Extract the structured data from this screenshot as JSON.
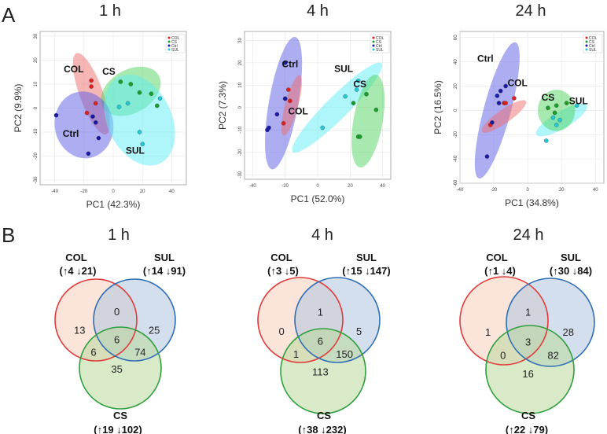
{
  "panel_a_letter": "A",
  "panel_b_letter": "B",
  "colors": {
    "COL": "#e0201e",
    "CS": "#1a9e2a",
    "Ctrl": "#1a1aa8",
    "SUL": "#24c9d6",
    "COL_fill": "#ef6e6e",
    "CS_fill": "#4fd45f",
    "Ctrl_fill": "#5b5be6",
    "SUL_fill": "#5eeef3",
    "venn_COL": "#e03a3a",
    "venn_SUL": "#2f6db5",
    "venn_CS": "#2e9e3e"
  },
  "chart_data": [
    {
      "type": "scatter",
      "title": "1 h",
      "xlabel": "PC1 (42.3%)",
      "ylabel": "PC2 (9.9%)",
      "xlim": [
        -50,
        50
      ],
      "ylim": [
        -32,
        32
      ],
      "xticks": [
        -40,
        -20,
        0,
        20,
        40
      ],
      "yticks": [
        -30,
        -20,
        -10,
        0,
        10,
        20,
        30
      ],
      "legend": [
        "COL",
        "CS",
        "Ctrl",
        "SUL"
      ],
      "legend_position": "top-right",
      "labels": [
        {
          "text": "COL",
          "group": "COL",
          "x": -27,
          "y": 15
        },
        {
          "text": "CS",
          "group": "CS",
          "x": -3,
          "y": 14
        },
        {
          "text": "Ctrl",
          "group": "Ctrl",
          "x": -29,
          "y": -12
        },
        {
          "text": "SUL",
          "group": "SUL",
          "x": 15,
          "y": -19
        }
      ],
      "series": [
        {
          "name": "COL",
          "points": [
            [
              -15,
              11.5
            ],
            [
              -15,
              9
            ],
            [
              -18,
              -2
            ],
            [
              -12,
              2
            ]
          ]
        },
        {
          "name": "CS",
          "points": [
            [
              5,
              11
            ],
            [
              12,
              10
            ],
            [
              18,
              6.5
            ],
            [
              26,
              6
            ],
            [
              30,
              1
            ]
          ]
        },
        {
          "name": "Ctrl",
          "points": [
            [
              -39,
              -3
            ],
            [
              -14,
              -3.5
            ],
            [
              -12,
              -6
            ],
            [
              -10,
              -12.5
            ],
            [
              -17,
              -19
            ]
          ]
        },
        {
          "name": "SUL",
          "points": [
            [
              32,
              4
            ],
            [
              10,
              2
            ],
            [
              4,
              0.5
            ],
            [
              18,
              -10
            ],
            [
              20,
              -15
            ]
          ]
        }
      ],
      "ellipses": [
        {
          "group": "COL",
          "cx": -15,
          "cy": 6,
          "rx": 8,
          "ry": 18,
          "angle": -20
        },
        {
          "group": "CS",
          "cx": 12,
          "cy": 7,
          "rx": 22,
          "ry": 9,
          "angle": -30
        },
        {
          "group": "Ctrl",
          "cx": -20,
          "cy": -7,
          "rx": 20,
          "ry": 14,
          "angle": -10
        },
        {
          "group": "SUL",
          "cx": 18,
          "cy": -5,
          "rx": 22,
          "ry": 20,
          "angle": -25
        }
      ]
    },
    {
      "type": "scatter",
      "title": "4 h",
      "xlabel": "PC1 (52.0%)",
      "ylabel": "PC2 (7.3%)",
      "xlim": [
        -45,
        45
      ],
      "ylim": [
        -32,
        34
      ],
      "xticks": [
        -40,
        -20,
        0,
        20,
        40
      ],
      "yticks": [
        -30,
        -20,
        -10,
        0,
        10,
        20,
        30
      ],
      "legend": [
        "COL",
        "CS",
        "Ctrl",
        "SUL"
      ],
      "legend_position": "top-right",
      "labels": [
        {
          "text": "Ctrl",
          "group": "Ctrl",
          "x": -17,
          "y": 18
        },
        {
          "text": "COL",
          "group": "COL",
          "x": -12,
          "y": -3
        },
        {
          "text": "SUL",
          "group": "SUL",
          "x": 16,
          "y": 16
        },
        {
          "text": "CS",
          "group": "CS",
          "x": 26,
          "y": 9
        }
      ],
      "series": [
        {
          "name": "COL",
          "points": [
            [
              -18,
              8
            ],
            [
              -20,
              4
            ],
            [
              -17,
              3
            ],
            [
              -21,
              -7
            ]
          ]
        },
        {
          "name": "CS",
          "points": [
            [
              30,
              6
            ],
            [
              22,
              2
            ],
            [
              36,
              -1
            ],
            [
              25,
              -13
            ],
            [
              26,
              -13
            ]
          ]
        },
        {
          "name": "Ctrl",
          "points": [
            [
              -20,
              20
            ],
            [
              -20,
              4
            ],
            [
              -25,
              -3
            ],
            [
              -30,
              -9
            ],
            [
              -31,
              -10
            ]
          ]
        },
        {
          "name": "SUL",
          "points": [
            [
              25,
              12
            ],
            [
              24,
              8
            ],
            [
              17,
              5
            ],
            [
              3,
              -9
            ]
          ]
        }
      ],
      "ellipses": [
        {
          "group": "Ctrl",
          "cx": -21,
          "cy": 2,
          "rx": 9,
          "ry": 30,
          "angle": 10
        },
        {
          "group": "COL",
          "cx": -16,
          "cy": 1,
          "rx": 4,
          "ry": 14,
          "angle": 15
        },
        {
          "group": "SUL",
          "cx": 12,
          "cy": 0,
          "rx": 7,
          "ry": 28,
          "angle": 45
        },
        {
          "group": "CS",
          "cx": 31,
          "cy": -6,
          "rx": 9,
          "ry": 21,
          "angle": 10
        }
      ]
    },
    {
      "type": "scatter",
      "title": "24 h",
      "xlabel": "PC1 (34.8%)",
      "ylabel": "PC2 (16.5%)",
      "xlim": [
        -40,
        45
      ],
      "ylim": [
        -60,
        65
      ],
      "xticks": [
        -40,
        -20,
        0,
        20,
        40
      ],
      "yticks": [
        -60,
        -40,
        -20,
        0,
        20,
        40,
        60
      ],
      "legend": [
        "COL",
        "CS",
        "Ctrl",
        "SUL"
      ],
      "legend_position": "top-right",
      "labels": [
        {
          "text": "Ctrl",
          "group": "Ctrl",
          "x": -25,
          "y": 40
        },
        {
          "text": "COL",
          "group": "COL",
          "x": -6,
          "y": 20
        },
        {
          "text": "CS",
          "group": "CS",
          "x": 12,
          "y": 8
        },
        {
          "text": "SUL",
          "group": "SUL",
          "x": 30,
          "y": 5
        }
      ],
      "series": [
        {
          "name": "COL",
          "points": [
            [
              -14,
              6
            ],
            [
              -13,
              6
            ],
            [
              -8,
              10
            ],
            [
              -22,
              -12
            ]
          ]
        },
        {
          "name": "CS",
          "points": [
            [
              12,
              2
            ],
            [
              17,
              4
            ],
            [
              23,
              6
            ],
            [
              16,
              -2
            ]
          ]
        },
        {
          "name": "Ctrl",
          "points": [
            [
              -13,
              20
            ],
            [
              -16,
              16
            ],
            [
              -18,
              12
            ],
            [
              -17,
              6
            ],
            [
              -21,
              -10
            ],
            [
              -24,
              -38
            ]
          ]
        },
        {
          "name": "SUL",
          "points": [
            [
              29,
              4
            ],
            [
              15,
              -6
            ],
            [
              19,
              -8
            ],
            [
              17,
              -12
            ],
            [
              11,
              -25
            ]
          ]
        }
      ],
      "ellipses": [
        {
          "group": "Ctrl",
          "cx": -18,
          "cy": 0,
          "rx": 8,
          "ry": 58,
          "angle": 15
        },
        {
          "group": "COL",
          "cx": -14,
          "cy": -5,
          "rx": 4,
          "ry": 22,
          "angle": 55
        },
        {
          "group": "SUL",
          "cx": 20,
          "cy": -8,
          "rx": 5,
          "ry": 24,
          "angle": 60
        },
        {
          "group": "CS",
          "cx": 17,
          "cy": 0,
          "rx": 11,
          "ry": 17,
          "angle": 0
        }
      ]
    },
    {
      "type": "venn",
      "title": "1 h",
      "sets": [
        {
          "name": "COL",
          "up": "4",
          "down": "21"
        },
        {
          "name": "SUL",
          "up": "14",
          "down": "91"
        },
        {
          "name": "CS",
          "up": "19",
          "down": "102"
        }
      ],
      "regions": {
        "COL_only": 13,
        "SUL_only": 25,
        "CS_only": 35,
        "COL_SUL": 0,
        "COL_CS": 6,
        "SUL_CS": 74,
        "all": 6
      }
    },
    {
      "type": "venn",
      "title": "4 h",
      "sets": [
        {
          "name": "COL",
          "up": "3",
          "down": "5"
        },
        {
          "name": "SUL",
          "up": "15",
          "down": "147"
        },
        {
          "name": "CS",
          "up": "38",
          "down": "232"
        }
      ],
      "regions": {
        "COL_only": 0,
        "SUL_only": 5,
        "CS_only": 113,
        "COL_SUL": 1,
        "COL_CS": 1,
        "SUL_CS": 150,
        "all": 6
      }
    },
    {
      "type": "venn",
      "title": "24 h",
      "sets": [
        {
          "name": "COL",
          "up": "1",
          "down": "4"
        },
        {
          "name": "SUL",
          "up": "30",
          "down": "84"
        },
        {
          "name": "CS",
          "up": "22",
          "down": "79"
        }
      ],
      "regions": {
        "COL_only": 1,
        "SUL_only": 28,
        "CS_only": 16,
        "COL_SUL": 1,
        "COL_CS": 0,
        "SUL_CS": 82,
        "all": 3
      }
    }
  ]
}
